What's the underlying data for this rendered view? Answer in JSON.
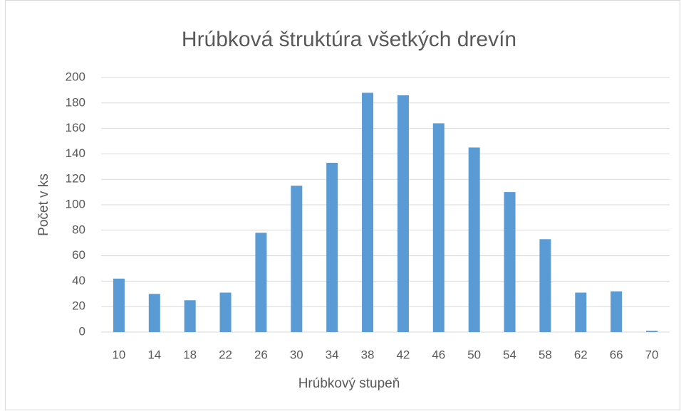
{
  "chart_data": {
    "type": "bar",
    "title": "Hrúbková štruktúra všetkých drevín",
    "x_label": "Hrúbkový stupeň",
    "y_label": "Počet v ks",
    "categories": [
      "10",
      "14",
      "18",
      "22",
      "26",
      "30",
      "34",
      "38",
      "42",
      "46",
      "50",
      "54",
      "58",
      "62",
      "66",
      "70"
    ],
    "values": [
      42,
      30,
      25,
      31,
      78,
      115,
      133,
      188,
      186,
      164,
      145,
      110,
      73,
      31,
      32,
      1
    ],
    "color": "#5b9bd5",
    "ylim": [
      0,
      200
    ],
    "yticks": [
      0,
      20,
      40,
      60,
      80,
      100,
      120,
      140,
      160,
      180,
      200
    ],
    "grid": true
  }
}
